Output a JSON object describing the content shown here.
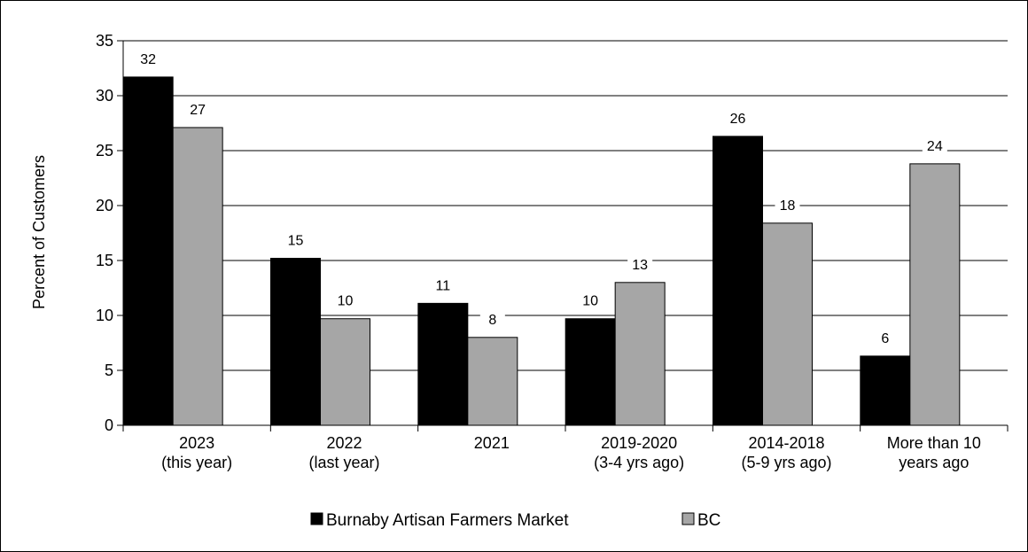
{
  "chart_data": {
    "type": "bar",
    "categories": [
      [
        "2023",
        "(this year)"
      ],
      [
        "2022",
        "(last year)"
      ],
      [
        "2021"
      ],
      [
        "2019-2020",
        "(3-4 yrs ago)"
      ],
      [
        "2014-2018",
        "(5-9 yrs ago)"
      ],
      [
        "More than 10",
        "years ago"
      ]
    ],
    "series": [
      {
        "name": "Burnaby Artisan Farmers Market",
        "values": [
          31.7,
          15.2,
          11.1,
          9.7,
          26.3,
          6.3
        ],
        "labels": [
          "32",
          "15",
          "11",
          "10",
          "26",
          "6"
        ],
        "color": "#000000"
      },
      {
        "name": "BC",
        "values": [
          27.1,
          9.7,
          8.0,
          13.0,
          18.4,
          23.8
        ],
        "labels": [
          "27",
          "10",
          "8",
          "13",
          "18",
          "24"
        ],
        "color": "#a6a6a6"
      }
    ],
    "title": "",
    "xlabel": "",
    "ylabel": "Percent of Customers",
    "ylim": [
      0,
      35
    ],
    "yticks": [
      "0",
      "5",
      "10",
      "15",
      "20",
      "25",
      "30",
      "35"
    ],
    "grid": true,
    "legend": "bottom"
  }
}
